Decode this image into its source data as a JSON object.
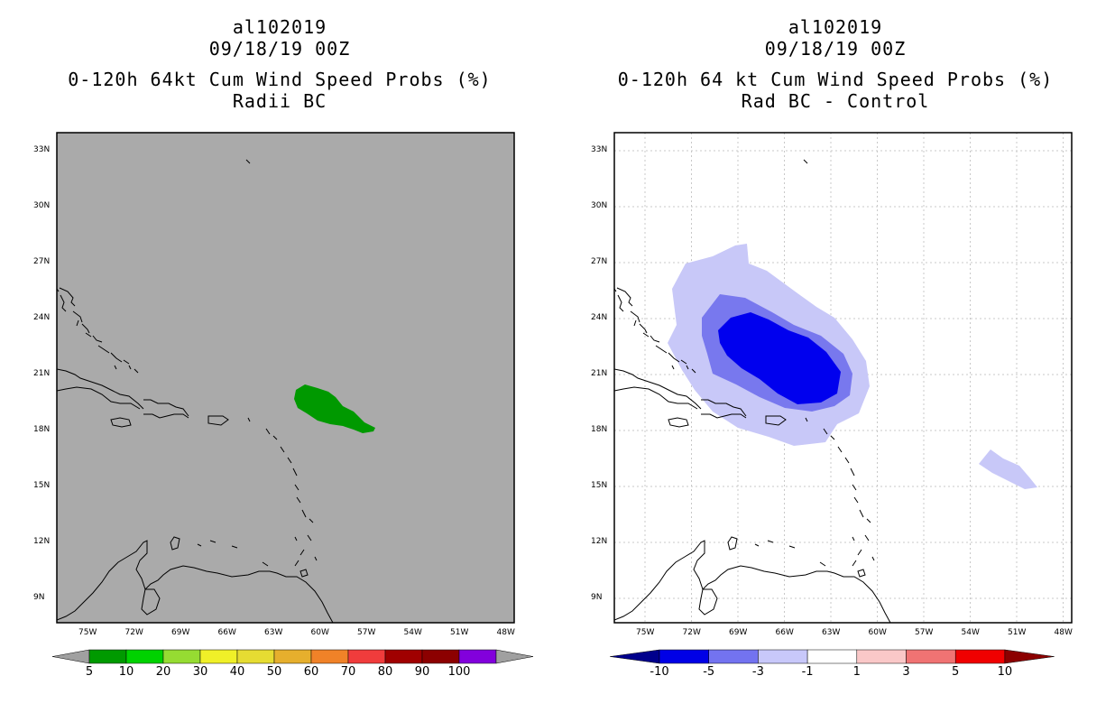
{
  "left_panel": {
    "title_lines": [
      "al102019",
      "09/18/19 00Z",
      "0-120h 64kt Cum Wind Speed Probs (%)",
      "Radii BC"
    ],
    "background_color": "#aaaaaa",
    "field_color": "#009900"
  },
  "right_panel": {
    "title_lines": [
      "al102019",
      "09/18/19 00Z",
      "0-120h 64 kt Cum Wind Speed Probs (%)",
      "Rad BC - Control"
    ],
    "background_color": "#ffffff",
    "field_colors": {
      "light": "#c8c8f8",
      "medium": "#7878ee",
      "dark": "#0000ee"
    }
  },
  "map_axes": {
    "lon_labels": [
      "75W",
      "72W",
      "69W",
      "66W",
      "63W",
      "60W",
      "57W",
      "54W",
      "51W",
      "48W"
    ],
    "lat_labels": [
      "33N",
      "30N",
      "27N",
      "24N",
      "21N",
      "18N",
      "15N",
      "12N",
      "9N"
    ]
  },
  "colorbar_left": {
    "labels": [
      "5",
      "10",
      "20",
      "30",
      "40",
      "50",
      "60",
      "70",
      "80",
      "90",
      "100"
    ],
    "colors": [
      "#009a00",
      "#00d200",
      "#96dc32",
      "#f0f028",
      "#e6dc32",
      "#e6af2d",
      "#f08228",
      "#f03c3c",
      "#a00000",
      "#8c0000",
      "#8200dc"
    ],
    "end_color": "#a0a0a0"
  },
  "colorbar_right": {
    "labels": [
      "-10",
      "-5",
      "-3",
      "-1",
      "1",
      "3",
      "5",
      "10"
    ],
    "colors": [
      "#0000e6",
      "#7373f0",
      "#c8c8fa",
      "#ffffff",
      "#fac8c8",
      "#f07373",
      "#f00000"
    ],
    "end_low": "#00008c",
    "end_high": "#8c0000"
  }
}
